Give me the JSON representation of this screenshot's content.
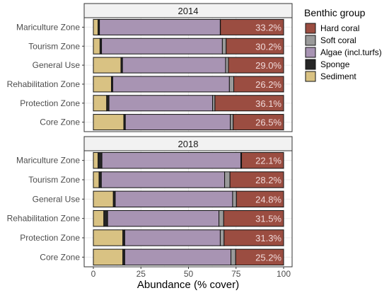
{
  "chart_data": {
    "type": "bar",
    "orientation": "horizontal",
    "stacked": true,
    "xlabel": "Abundance (% cover)",
    "xlim": [
      0,
      100
    ],
    "xticks": [
      0,
      25,
      50,
      75,
      100
    ],
    "grid": true,
    "legend": {
      "title": "Benthic group",
      "placement": "right",
      "entries": [
        "Hard coral",
        "Soft coral",
        "Algae (incl.turfs)",
        "Sponge",
        "Sediment"
      ]
    },
    "colors": {
      "Sediment": "#d9c283",
      "Sponge": "#262626",
      "Algae (incl.turfs)": "#a894b3",
      "Soft coral": "#9a9a9a",
      "Hard coral": "#9b4d41"
    },
    "stack_order": [
      "Sediment",
      "Sponge",
      "Algae (incl.turfs)",
      "Soft coral",
      "Hard coral"
    ],
    "categories": [
      "Mariculture Zone",
      "Tourism Zone",
      "General Use",
      "Rehabilitation Zone",
      "Protection Zone",
      "Core Zone"
    ],
    "panels": [
      {
        "title": "2014",
        "rows": [
          {
            "zone": "Mariculture Zone",
            "values": {
              "Sediment": 2.5,
              "Sponge": 0.7,
              "Algae (incl.turfs)": 63.5,
              "Soft coral": 0.1,
              "Hard coral": 33.2
            },
            "label": "33.2%"
          },
          {
            "zone": "Tourism Zone",
            "values": {
              "Sediment": 3.5,
              "Sponge": 0.8,
              "Algae (incl.turfs)": 63.5,
              "Soft coral": 2.0,
              "Hard coral": 30.2
            },
            "label": "30.2%"
          },
          {
            "zone": "General Use",
            "values": {
              "Sediment": 14.5,
              "Sponge": 0.8,
              "Algae (incl.turfs)": 54.2,
              "Soft coral": 1.5,
              "Hard coral": 29.0
            },
            "label": "29.0%"
          },
          {
            "zone": "Rehabilitation Zone",
            "values": {
              "Sediment": 9.5,
              "Sponge": 0.7,
              "Algae (incl.turfs)": 61.3,
              "Soft coral": 2.3,
              "Hard coral": 26.2
            },
            "label": "26.2%"
          },
          {
            "zone": "Protection Zone",
            "values": {
              "Sediment": 7.0,
              "Sponge": 1.2,
              "Algae (incl.turfs)": 54.5,
              "Soft coral": 1.2,
              "Hard coral": 36.1
            },
            "label": "36.1%"
          },
          {
            "zone": "Core Zone",
            "values": {
              "Sediment": 16.0,
              "Sponge": 0.8,
              "Algae (incl.turfs)": 55.2,
              "Soft coral": 1.5,
              "Hard coral": 26.5
            },
            "label": "26.5%"
          }
        ]
      },
      {
        "title": "2018",
        "rows": [
          {
            "zone": "Mariculture Zone",
            "values": {
              "Sediment": 2.5,
              "Sponge": 2.0,
              "Algae (incl.turfs)": 73.0,
              "Soft coral": 0.4,
              "Hard coral": 22.1
            },
            "label": "22.1%"
          },
          {
            "zone": "Tourism Zone",
            "values": {
              "Sediment": 3.0,
              "Sponge": 1.2,
              "Algae (incl.turfs)": 64.8,
              "Soft coral": 2.8,
              "Hard coral": 28.2
            },
            "label": "28.2%"
          },
          {
            "zone": "General Use",
            "values": {
              "Sediment": 10.5,
              "Sponge": 1.0,
              "Algae (incl.turfs)": 61.7,
              "Soft coral": 2.0,
              "Hard coral": 24.8
            },
            "label": "24.8%"
          },
          {
            "zone": "Rehabilitation Zone",
            "values": {
              "Sediment": 5.5,
              "Sponge": 2.0,
              "Algae (incl.turfs)": 58.5,
              "Soft coral": 2.5,
              "Hard coral": 31.5
            },
            "label": "31.5%"
          },
          {
            "zone": "Protection Zone",
            "values": {
              "Sediment": 15.5,
              "Sponge": 1.0,
              "Algae (incl.turfs)": 50.2,
              "Soft coral": 2.0,
              "Hard coral": 31.3
            },
            "label": "31.3%"
          },
          {
            "zone": "Core Zone",
            "values": {
              "Sediment": 15.5,
              "Sponge": 1.0,
              "Algae (incl.turfs)": 55.8,
              "Soft coral": 2.5,
              "Hard coral": 25.2
            },
            "label": "25.2%"
          }
        ]
      }
    ]
  }
}
